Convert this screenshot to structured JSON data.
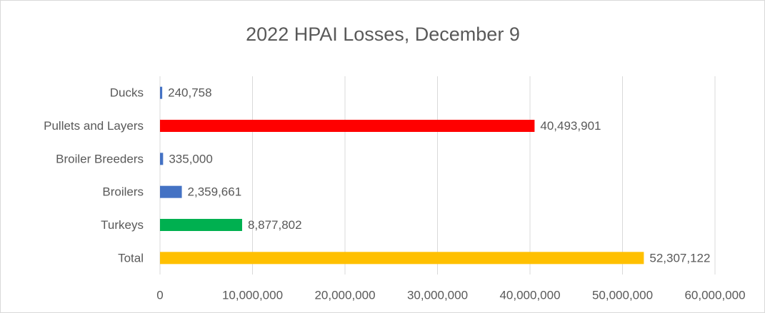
{
  "chart_data": {
    "type": "bar",
    "orientation": "horizontal",
    "title": "2022 HPAI Losses, December 9",
    "categories": [
      "Ducks",
      "Pullets and Layers",
      "Broiler Breeders",
      "Broilers",
      "Turkeys",
      "Total"
    ],
    "values": [
      240758,
      40493901,
      335000,
      2359661,
      8877802,
      52307122
    ],
    "value_labels": [
      "240,758",
      "40,493,901",
      "335,000",
      "2,359,661",
      "8,877,802",
      "52,307,122"
    ],
    "colors": [
      "#4472c4",
      "#ff0000",
      "#4472c4",
      "#4472c4",
      "#00b050",
      "#ffc000"
    ],
    "xlim": [
      0,
      60000000
    ],
    "xticks": [
      0,
      {
        "value": 10000000,
        "label": "10,000,000"
      },
      {
        "value": 20000000,
        "label": "20,000,000"
      },
      {
        "value": 30000000,
        "label": "30,000,000"
      },
      {
        "value": 40000000,
        "label": "40,000,000"
      },
      {
        "value": 50000000,
        "label": "50,000,000"
      },
      {
        "value": 60000000,
        "label": "60,000,000"
      }
    ],
    "grid": true
  }
}
